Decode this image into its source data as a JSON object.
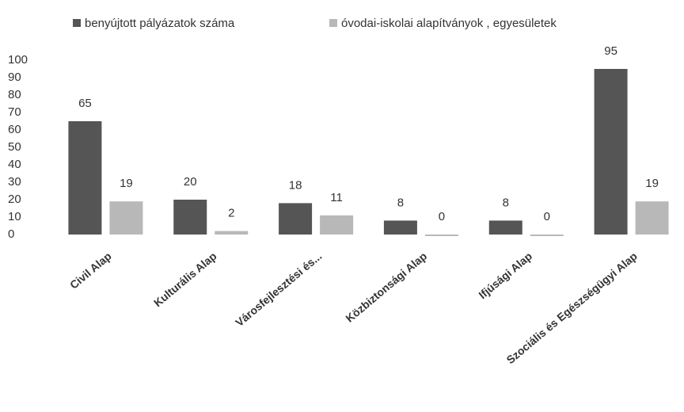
{
  "chart_data": {
    "type": "bar",
    "categories": [
      "Civil Alap",
      "Kulturális Alap",
      "Városfejlesztési és...",
      "Közbiztonsági Alap",
      "Ifjúsági Alap",
      "Szociális és Egészségügyi Alap"
    ],
    "series": [
      {
        "name": "benyújtott pályázatok száma",
        "color": "#555555",
        "values": [
          65,
          20,
          18,
          8,
          8,
          95
        ]
      },
      {
        "name": "óvodai-iskolai alapítványok , egyesületek",
        "color": "#b8b8b8",
        "values": [
          19,
          2,
          11,
          0,
          0,
          19
        ]
      }
    ],
    "ylim": [
      0,
      100
    ],
    "yticks": [
      0,
      10,
      20,
      30,
      40,
      50,
      60,
      70,
      80,
      90,
      100
    ],
    "legend": "top"
  }
}
